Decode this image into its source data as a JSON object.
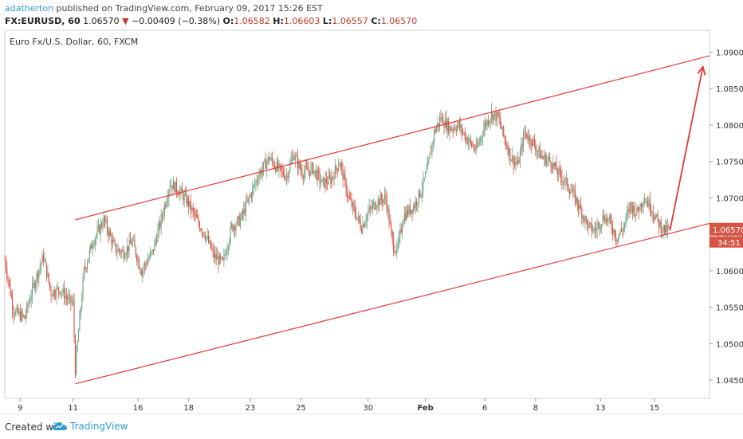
{
  "header": {
    "author": "adatherton",
    "published_text": " published on TradingView.com, February 09, 2017 15:26 EST",
    "symbol": "FX:EURUSD, 60",
    "last": "1.06570",
    "change_arrow": "▼",
    "change": "−0.00409 (−0.38%)",
    "o_label": "O:",
    "o_value": "1.06582",
    "h_label": "H:",
    "h_value": "1.06603",
    "l_label": "L:",
    "l_value": "1.06557",
    "c_label": "C:",
    "c_value": "1.06570"
  },
  "footer": {
    "created_with": "Created with",
    "brand": "TradingView",
    "brand_icon": "tradingview-cloud-icon"
  },
  "colors": {
    "candle_up": "#6ba583",
    "candle_down": "#d75442",
    "line_red": "#e53935",
    "price_label_bg": "#d75442",
    "brand_blue": "#2e9dd6"
  },
  "chart_data": {
    "type": "candlestick",
    "title": "Euro Fx/U.S. Dollar, 60, FXCM",
    "ylim": [
      1.0425,
      1.093
    ],
    "y_ticks": [
      "1.09000",
      "1.08500",
      "1.08000",
      "1.07500",
      "1.07000",
      "1.06500",
      "1.06000",
      "1.05500",
      "1.05000",
      "1.04500"
    ],
    "y_tick_values": [
      1.09,
      1.085,
      1.08,
      1.075,
      1.07,
      1.065,
      1.06,
      1.055,
      1.05,
      1.045
    ],
    "x_ticks": [
      "9",
      "11",
      "16",
      "18",
      "23",
      "25",
      "30",
      "Feb",
      "6",
      "8",
      "13",
      "15"
    ],
    "x_tick_bars": [
      14,
      62,
      121,
      167,
      223,
      269,
      330,
      382,
      436,
      482,
      541,
      590
    ],
    "x_range_bars": [
      0,
      640
    ],
    "last_price_label": "1.06570",
    "countdown_label": "34:51",
    "price_path": [
      [
        0,
        1.0615
      ],
      [
        8,
        1.0545
      ],
      [
        18,
        1.0535
      ],
      [
        25,
        1.0575
      ],
      [
        35,
        1.062
      ],
      [
        42,
        1.057
      ],
      [
        50,
        1.0575
      ],
      [
        58,
        1.056
      ],
      [
        62,
        1.0555
      ],
      [
        64,
        1.0465
      ],
      [
        66,
        1.05
      ],
      [
        72,
        1.06
      ],
      [
        80,
        1.064
      ],
      [
        90,
        1.067
      ],
      [
        100,
        1.063
      ],
      [
        108,
        1.0625
      ],
      [
        116,
        1.064
      ],
      [
        124,
        1.06
      ],
      [
        134,
        1.0625
      ],
      [
        142,
        1.067
      ],
      [
        150,
        1.072
      ],
      [
        158,
        1.071
      ],
      [
        166,
        1.0695
      ],
      [
        174,
        1.067
      ],
      [
        182,
        1.065
      ],
      [
        190,
        1.062
      ],
      [
        198,
        1.061
      ],
      [
        206,
        1.066
      ],
      [
        214,
        1.067
      ],
      [
        222,
        1.07
      ],
      [
        230,
        1.073
      ],
      [
        240,
        1.0755
      ],
      [
        248,
        1.074
      ],
      [
        256,
        1.073
      ],
      [
        262,
        1.076
      ],
      [
        270,
        1.0735
      ],
      [
        280,
        1.074
      ],
      [
        288,
        1.072
      ],
      [
        296,
        1.0725
      ],
      [
        304,
        1.075
      ],
      [
        312,
        1.07
      ],
      [
        318,
        1.068
      ],
      [
        324,
        1.066
      ],
      [
        330,
        1.068
      ],
      [
        338,
        1.0695
      ],
      [
        346,
        1.07
      ],
      [
        352,
        1.064
      ],
      [
        356,
        1.0625
      ],
      [
        362,
        1.0675
      ],
      [
        372,
        1.069
      ],
      [
        378,
        1.071
      ],
      [
        384,
        1.074
      ],
      [
        390,
        1.079
      ],
      [
        396,
        1.081
      ],
      [
        404,
        1.0795
      ],
      [
        412,
        1.08
      ],
      [
        420,
        1.078
      ],
      [
        428,
        1.0765
      ],
      [
        436,
        1.08
      ],
      [
        442,
        1.0815
      ],
      [
        448,
        1.081
      ],
      [
        454,
        1.078
      ],
      [
        460,
        1.0755
      ],
      [
        466,
        1.0745
      ],
      [
        472,
        1.079
      ],
      [
        480,
        1.0775
      ],
      [
        488,
        1.0755
      ],
      [
        496,
        1.075
      ],
      [
        502,
        1.0735
      ],
      [
        510,
        1.072
      ],
      [
        518,
        1.07
      ],
      [
        524,
        1.068
      ],
      [
        530,
        1.066
      ],
      [
        536,
        1.0655
      ],
      [
        544,
        1.0675
      ],
      [
        550,
        1.0665
      ],
      [
        556,
        1.0645
      ],
      [
        562,
        1.066
      ],
      [
        568,
        1.069
      ],
      [
        574,
        1.068
      ],
      [
        580,
        1.07
      ],
      [
        586,
        1.069
      ],
      [
        592,
        1.067
      ],
      [
        596,
        1.066
      ],
      [
        600,
        1.0655
      ],
      [
        604,
        1.0657
      ]
    ],
    "channel_upper": [
      [
        64,
        1.067
      ],
      [
        640,
        1.0895
      ]
    ],
    "channel_lower": [
      [
        64,
        1.0445
      ],
      [
        640,
        1.0665
      ]
    ],
    "forecast_arrow": [
      [
        604,
        1.0655
      ],
      [
        634,
        1.088
      ]
    ]
  }
}
